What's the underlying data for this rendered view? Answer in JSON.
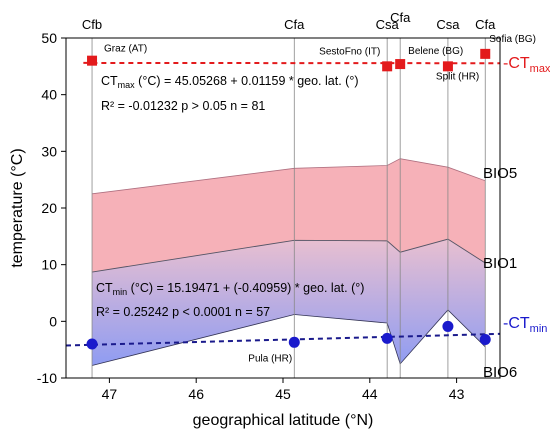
{
  "chart_data": {
    "type": "line",
    "xlabel": "geographical latitude (°N)",
    "ylabel": "temperature (°C)",
    "xlim": [
      47.5,
      42.5
    ],
    "ylim": [
      -10,
      50
    ],
    "x_reversed": true,
    "x_ticks": [
      47,
      46,
      45,
      44,
      43
    ],
    "y_ticks": [
      -10,
      0,
      10,
      20,
      30,
      40,
      50
    ],
    "station_lats": [
      47.2,
      44.87,
      43.8,
      43.65,
      43.1,
      42.67
    ],
    "koppen_classes": [
      "Cfb",
      "Cfa",
      "Csa",
      "Cfa",
      "Csa",
      "Cfa"
    ],
    "bio5": [
      22.5,
      27.0,
      27.5,
      28.7,
      27.2,
      24.8
    ],
    "bio1": [
      8.7,
      14.3,
      14.2,
      12.2,
      14.5,
      10.3
    ],
    "bio6": [
      -7.8,
      1.2,
      -0.3,
      -7.5,
      2.0,
      -4.5
    ],
    "ctmax_points": [
      {
        "lat": 47.2,
        "value": 46.0,
        "label": "Graz (AT)"
      },
      {
        "lat": 43.8,
        "value": 45.0,
        "label": "SestoFno (IT)"
      },
      {
        "lat": 43.65,
        "value": 45.4,
        "label": "Belene (BG)"
      },
      {
        "lat": 43.1,
        "value": 45.0,
        "label": "Split (HR)"
      },
      {
        "lat": 42.67,
        "value": 47.2,
        "label": "Sofia (BG)"
      }
    ],
    "ctmin_points": [
      {
        "lat": 47.2,
        "value": -4.0,
        "label": ""
      },
      {
        "lat": 44.87,
        "value": -3.7,
        "label": "Pula (HR)"
      },
      {
        "lat": 43.8,
        "value": -3.0,
        "label": ""
      },
      {
        "lat": 43.1,
        "value": -0.9,
        "label": ""
      },
      {
        "lat": 42.67,
        "value": -3.2,
        "label": ""
      }
    ],
    "ctmax_fit": {
      "intercept": 45.05268,
      "slope": 0.01159
    },
    "ctmin_fit": {
      "intercept": 15.19471,
      "slope": -0.40959
    },
    "ctmax_eq_1": "CT",
    "ctmax_eq_sub": "max",
    "ctmax_eq_2": " (°C) = 45.05268 + 0.01159 * geo. lat. (°)",
    "ctmax_stats": "R² = -0.01232   p > 0.05   n = 81",
    "ctmin_eq_1": "CT",
    "ctmin_eq_sub": "min",
    "ctmin_eq_2": " (°C) = 15.19471 + (-0.40959) * geo. lat. (°)",
    "ctmin_stats": "R² = 0.25242   p < 0.0001   n = 57",
    "ctmax_line_label": "-CT",
    "ctmax_line_sub": "max",
    "ctmin_line_label": "-CT",
    "ctmin_line_sub": "min",
    "band_labels": [
      "BIO5",
      "BIO1",
      "BIO6"
    ],
    "colors": {
      "ctmax": "#e31a1c",
      "ctmin": "#1a1acc",
      "upper_band": "#f4a3ab",
      "lower_band": "#9ea8f0",
      "vline": "#888888"
    }
  }
}
